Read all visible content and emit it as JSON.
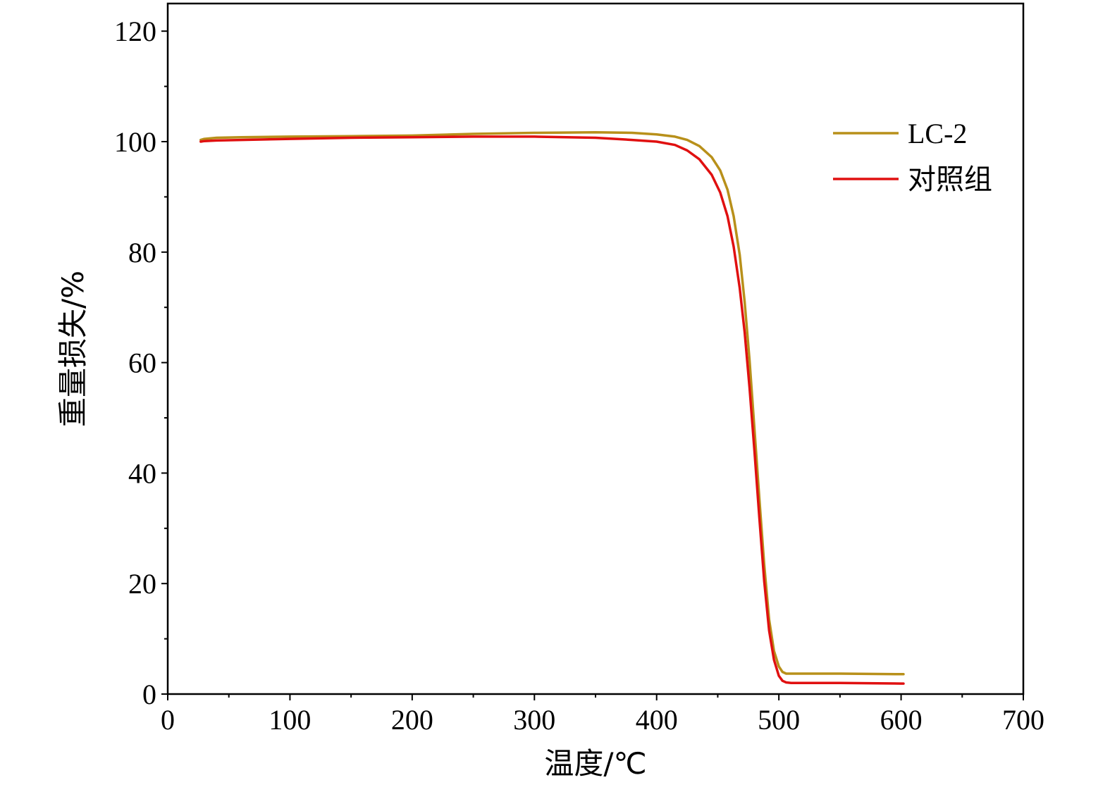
{
  "chart_data": {
    "type": "line",
    "title": "",
    "xlabel": "温度/℃",
    "ylabel": "重量损失/%",
    "xlim": [
      0,
      700
    ],
    "ylim": [
      0,
      125
    ],
    "xticks": [
      0,
      100,
      200,
      300,
      400,
      500,
      600,
      700
    ],
    "yticks": [
      0,
      20,
      40,
      60,
      80,
      100,
      120
    ],
    "x_minor_step": 50,
    "y_minor_step": 10,
    "grid": false,
    "legend_position": "top-right",
    "series": [
      {
        "name": "LC-2",
        "color": "#b8901a",
        "points": [
          [
            27,
            100.3
          ],
          [
            30,
            100.5
          ],
          [
            40,
            100.7
          ],
          [
            60,
            100.8
          ],
          [
            100,
            100.9
          ],
          [
            150,
            101.0
          ],
          [
            200,
            101.1
          ],
          [
            250,
            101.4
          ],
          [
            300,
            101.6
          ],
          [
            350,
            101.7
          ],
          [
            380,
            101.6
          ],
          [
            400,
            101.3
          ],
          [
            415,
            100.9
          ],
          [
            425,
            100.3
          ],
          [
            435,
            99.2
          ],
          [
            445,
            97.2
          ],
          [
            452,
            94.8
          ],
          [
            458,
            91.3
          ],
          [
            463,
            86.5
          ],
          [
            468,
            79.5
          ],
          [
            472,
            71.0
          ],
          [
            476,
            60.5
          ],
          [
            480,
            48.0
          ],
          [
            484,
            35.5
          ],
          [
            488,
            23.5
          ],
          [
            492,
            13.5
          ],
          [
            496,
            7.8
          ],
          [
            500,
            5.0
          ],
          [
            503,
            4.0
          ],
          [
            506,
            3.7
          ],
          [
            510,
            3.7
          ],
          [
            550,
            3.7
          ],
          [
            600,
            3.6
          ],
          [
            602,
            3.6
          ]
        ]
      },
      {
        "name": "对照组",
        "color": "#e01010",
        "points": [
          [
            27,
            100.0
          ],
          [
            30,
            100.1
          ],
          [
            40,
            100.2
          ],
          [
            60,
            100.3
          ],
          [
            100,
            100.5
          ],
          [
            150,
            100.7
          ],
          [
            200,
            100.8
          ],
          [
            250,
            100.9
          ],
          [
            300,
            100.9
          ],
          [
            350,
            100.7
          ],
          [
            380,
            100.3
          ],
          [
            400,
            100.0
          ],
          [
            415,
            99.4
          ],
          [
            425,
            98.4
          ],
          [
            435,
            96.8
          ],
          [
            445,
            94.0
          ],
          [
            452,
            90.8
          ],
          [
            458,
            86.5
          ],
          [
            463,
            81.0
          ],
          [
            468,
            73.5
          ],
          [
            472,
            65.5
          ],
          [
            476,
            55.5
          ],
          [
            480,
            44.0
          ],
          [
            484,
            32.0
          ],
          [
            488,
            20.5
          ],
          [
            492,
            11.5
          ],
          [
            496,
            6.2
          ],
          [
            500,
            3.3
          ],
          [
            503,
            2.4
          ],
          [
            506,
            2.1
          ],
          [
            510,
            2.0
          ],
          [
            550,
            2.0
          ],
          [
            600,
            1.9
          ],
          [
            602,
            1.9
          ]
        ]
      }
    ]
  }
}
